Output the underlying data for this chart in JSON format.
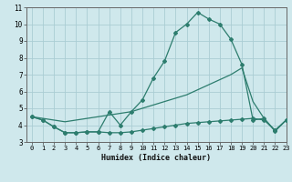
{
  "x": [
    0,
    1,
    2,
    3,
    4,
    5,
    6,
    7,
    8,
    9,
    10,
    11,
    12,
    13,
    14,
    15,
    16,
    17,
    18,
    19,
    20,
    21,
    22,
    23
  ],
  "line_curved": [
    4.5,
    4.3,
    3.9,
    3.55,
    3.55,
    3.6,
    3.6,
    4.8,
    4.0,
    4.8,
    5.5,
    6.8,
    7.8,
    9.5,
    10.0,
    10.7,
    10.3,
    10.0,
    9.1,
    7.6,
    4.3,
    4.4,
    3.65,
    4.3
  ],
  "line_diag_high": [
    4.5,
    4.4,
    4.3,
    4.2,
    4.3,
    4.4,
    4.5,
    4.6,
    4.7,
    4.8,
    5.0,
    5.2,
    5.4,
    5.6,
    5.8,
    6.1,
    6.4,
    6.7,
    7.0,
    7.4,
    5.4,
    4.4,
    3.65,
    4.3
  ],
  "line_diag_low": [
    4.5,
    4.3,
    3.9,
    3.55,
    3.55,
    3.6,
    3.6,
    3.55,
    3.55,
    3.6,
    3.7,
    3.8,
    3.9,
    4.0,
    4.1,
    4.15,
    4.2,
    4.25,
    4.3,
    4.35,
    4.4,
    4.3,
    3.7,
    4.3
  ],
  "color": "#2d7d6e",
  "bg_color": "#cfe8ec",
  "grid_color": "#aacdd4",
  "xlabel": "Humidex (Indice chaleur)",
  "ylim": [
    3,
    11
  ],
  "xlim": [
    -0.5,
    23
  ],
  "yticks": [
    3,
    4,
    5,
    6,
    7,
    8,
    9,
    10,
    11
  ],
  "xticks": [
    0,
    1,
    2,
    3,
    4,
    5,
    6,
    7,
    8,
    9,
    10,
    11,
    12,
    13,
    14,
    15,
    16,
    17,
    18,
    19,
    20,
    21,
    22,
    23
  ]
}
